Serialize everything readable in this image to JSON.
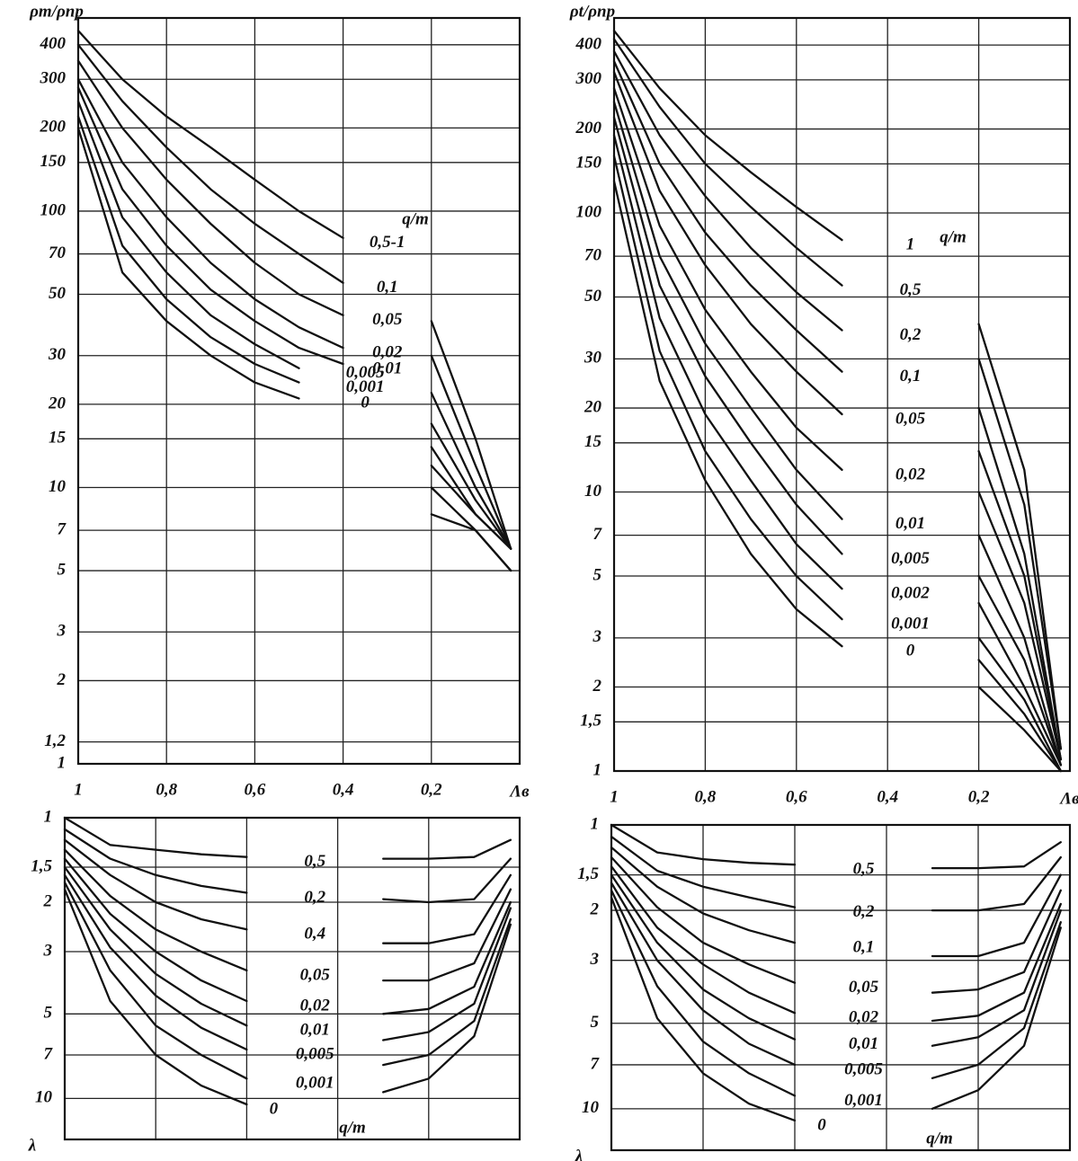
{
  "chart_data": [
    {
      "type": "line",
      "ylog": true,
      "grid": true,
      "y_label": "ρm/ρпр",
      "x_label": "Λв",
      "legend_title": "q/m",
      "xlim": [
        1,
        0
      ],
      "ylim": [
        1,
        500
      ],
      "xticks": [
        1,
        {
          "value": 0.8,
          "label": "0,8"
        },
        {
          "value": 0.6,
          "label": "0,6"
        },
        {
          "value": 0.4,
          "label": "0,4"
        },
        {
          "value": 0.2,
          "label": "0,2"
        }
      ],
      "yticks": [
        1,
        {
          "value": 1.2,
          "label": "1,2"
        },
        2,
        3,
        5,
        7,
        10,
        15,
        20,
        30,
        50,
        70,
        100,
        150,
        200,
        300,
        400
      ],
      "x": [
        1,
        0.9,
        0.8,
        0.7,
        0.6,
        0.5,
        0.4,
        0.3,
        0.2,
        0.1,
        0.02
      ],
      "series": [
        {
          "name": "0,5-1",
          "color": "#111111",
          "values": [
            450,
            300,
            220,
            170,
            130,
            100,
            80,
            null,
            40,
            15,
            6
          ]
        },
        {
          "name": "0,1",
          "color": "#111111",
          "values": [
            400,
            250,
            170,
            120,
            90,
            70,
            55,
            null,
            30,
            12,
            6
          ]
        },
        {
          "name": "0,05",
          "color": "#111111",
          "values": [
            350,
            200,
            130,
            90,
            65,
            50,
            42,
            null,
            22,
            10,
            6
          ]
        },
        {
          "name": "0,02",
          "color": "#111111",
          "values": [
            300,
            150,
            95,
            65,
            48,
            38,
            32,
            null,
            17,
            9,
            6
          ]
        },
        {
          "name": "0,01",
          "color": "#111111",
          "values": [
            280,
            120,
            75,
            52,
            40,
            32,
            28,
            null,
            14,
            8,
            6
          ]
        },
        {
          "name": "0,005",
          "color": "#111111",
          "values": [
            250,
            95,
            60,
            42,
            33,
            27,
            null,
            null,
            12,
            8,
            6
          ]
        },
        {
          "name": "0,001",
          "color": "#111111",
          "values": [
            220,
            75,
            48,
            35,
            28,
            24,
            null,
            null,
            10,
            7,
            5
          ]
        },
        {
          "name": "0",
          "color": "#111111",
          "values": [
            200,
            60,
            40,
            30,
            24,
            21,
            null,
            null,
            8,
            7,
            5
          ]
        }
      ]
    },
    {
      "type": "line",
      "ylog": true,
      "grid": true,
      "y_label": "ρt/ρпр",
      "x_label": "Λв",
      "legend_title": "q/m",
      "xlim": [
        1,
        0
      ],
      "ylim": [
        1,
        500
      ],
      "xticks": [
        1,
        {
          "value": 0.8,
          "label": "0,8"
        },
        {
          "value": 0.6,
          "label": "0,6"
        },
        {
          "value": 0.4,
          "label": "0,4"
        },
        {
          "value": 0.2,
          "label": "0,2"
        }
      ],
      "yticks": [
        1,
        {
          "value": 1.5,
          "label": "1,5"
        },
        2,
        3,
        5,
        7,
        10,
        15,
        20,
        30,
        50,
        70,
        100,
        150,
        200,
        300,
        400
      ],
      "x": [
        1,
        0.9,
        0.8,
        0.7,
        0.6,
        0.5,
        0.4,
        0.3,
        0.2,
        0.1,
        0.02
      ],
      "series": [
        {
          "name": "1",
          "color": "#111111",
          "values": [
            450,
            280,
            190,
            140,
            105,
            80,
            null,
            null,
            40,
            12,
            1.2
          ]
        },
        {
          "name": "0,5",
          "color": "#111111",
          "values": [
            420,
            240,
            150,
            105,
            75,
            55,
            null,
            null,
            30,
            9,
            1.2
          ]
        },
        {
          "name": "0,2",
          "color": "#111111",
          "values": [
            380,
            190,
            115,
            75,
            52,
            38,
            null,
            null,
            20,
            6,
            1.1
          ]
        },
        {
          "name": "0,1",
          "color": "#111111",
          "values": [
            350,
            150,
            85,
            55,
            38,
            27,
            null,
            null,
            14,
            5,
            1.1
          ]
        },
        {
          "name": "0,05",
          "color": "#111111",
          "values": [
            320,
            120,
            65,
            40,
            27,
            19,
            null,
            null,
            10,
            4,
            1.1
          ]
        },
        {
          "name": "0,02",
          "color": "#111111",
          "values": [
            280,
            90,
            45,
            27,
            17,
            12,
            null,
            null,
            7,
            3,
            1.05
          ]
        },
        {
          "name": "0,01",
          "color": "#111111",
          "values": [
            250,
            70,
            34,
            20,
            12,
            8,
            null,
            null,
            5,
            2.5,
            1.05
          ]
        },
        {
          "name": "0,005",
          "color": "#111111",
          "values": [
            220,
            55,
            26,
            15,
            9,
            6,
            null,
            null,
            4,
            2,
            1.05
          ]
        },
        {
          "name": "0,002",
          "color": "#111111",
          "values": [
            190,
            42,
            19,
            11,
            6.5,
            4.5,
            null,
            null,
            3,
            1.8,
            1
          ]
        },
        {
          "name": "0,001",
          "color": "#111111",
          "values": [
            160,
            32,
            14,
            8,
            5,
            3.5,
            null,
            null,
            2.5,
            1.6,
            1
          ]
        },
        {
          "name": "0",
          "color": "#111111",
          "values": [
            130,
            25,
            11,
            6,
            3.8,
            2.8,
            null,
            null,
            2,
            1.4,
            1
          ]
        }
      ]
    },
    {
      "type": "line",
      "ylog": true,
      "yinverted": true,
      "grid": true,
      "y_label": "λ",
      "legend_title": "q/m",
      "xlim": [
        1,
        0
      ],
      "ylim": [
        1,
        14
      ],
      "yticks": [
        1,
        {
          "value": 1.5,
          "label": "1,5"
        },
        2,
        3,
        5,
        7,
        10
      ],
      "x": [
        1,
        0.9,
        0.8,
        0.7,
        0.6,
        0.5,
        0.4,
        0.3,
        0.2,
        0.1,
        0.02
      ],
      "series": [
        {
          "name": "0,5",
          "color": "#111111",
          "values": [
            1,
            1.25,
            1.3,
            1.35,
            1.38,
            null,
            null,
            1.4,
            1.4,
            1.38,
            1.2
          ]
        },
        {
          "name": "0,2",
          "color": "#111111",
          "values": [
            1.1,
            1.4,
            1.6,
            1.75,
            1.85,
            null,
            null,
            1.95,
            2,
            1.95,
            1.4
          ]
        },
        {
          "name": "0,4",
          "color": "#111111",
          "values": [
            1.2,
            1.6,
            2,
            2.3,
            2.5,
            null,
            null,
            2.8,
            2.8,
            2.6,
            1.6
          ]
        },
        {
          "name": "0,05",
          "color": "#111111",
          "values": [
            1.3,
            1.9,
            2.5,
            3,
            3.5,
            null,
            null,
            3.8,
            3.8,
            3.3,
            1.8
          ]
        },
        {
          "name": "0,02",
          "color": "#111111",
          "values": [
            1.4,
            2.2,
            3,
            3.8,
            4.5,
            null,
            null,
            5,
            4.8,
            4,
            2
          ]
        },
        {
          "name": "0,01",
          "color": "#111111",
          "values": [
            1.5,
            2.5,
            3.6,
            4.6,
            5.5,
            null,
            null,
            6.2,
            5.8,
            4.6,
            2.1
          ]
        },
        {
          "name": "0,005",
          "color": "#111111",
          "values": [
            1.6,
            2.9,
            4.3,
            5.6,
            6.7,
            null,
            null,
            7.6,
            7,
            5.3,
            2.3
          ]
        },
        {
          "name": "0,001",
          "color": "#111111",
          "values": [
            1.7,
            3.5,
            5.5,
            7,
            8.5,
            null,
            null,
            9.5,
            8.5,
            6,
            2.4
          ]
        },
        {
          "name": "0",
          "color": "#111111",
          "values": [
            1.8,
            4.5,
            7,
            9,
            10.5,
            null,
            null,
            null,
            null,
            null,
            null
          ]
        }
      ]
    },
    {
      "type": "line",
      "ylog": true,
      "yinverted": true,
      "grid": true,
      "y_label": "λ",
      "legend_title": "q/m",
      "xlim": [
        1,
        0
      ],
      "ylim": [
        1,
        14
      ],
      "yticks": [
        1,
        {
          "value": 1.5,
          "label": "1,5"
        },
        2,
        3,
        5,
        7,
        10
      ],
      "x": [
        1,
        0.9,
        0.8,
        0.7,
        0.6,
        0.5,
        0.4,
        0.3,
        0.2,
        0.1,
        0.02
      ],
      "series": [
        {
          "name": "0,5",
          "color": "#111111",
          "values": [
            1,
            1.25,
            1.32,
            1.36,
            1.38,
            null,
            null,
            1.42,
            1.42,
            1.4,
            1.15
          ]
        },
        {
          "name": "0,2",
          "color": "#111111",
          "values": [
            1.1,
            1.45,
            1.65,
            1.8,
            1.95,
            null,
            null,
            2,
            2,
            1.9,
            1.3
          ]
        },
        {
          "name": "0,1",
          "color": "#111111",
          "values": [
            1.2,
            1.65,
            2.05,
            2.35,
            2.6,
            null,
            null,
            2.9,
            2.9,
            2.6,
            1.5
          ]
        },
        {
          "name": "0,05",
          "color": "#111111",
          "values": [
            1.3,
            1.95,
            2.6,
            3.1,
            3.6,
            null,
            null,
            3.9,
            3.8,
            3.3,
            1.7
          ]
        },
        {
          "name": "0,02",
          "color": "#111111",
          "values": [
            1.4,
            2.3,
            3.1,
            3.9,
            4.6,
            null,
            null,
            4.9,
            4.7,
            3.9,
            1.9
          ]
        },
        {
          "name": "0,01",
          "color": "#111111",
          "values": [
            1.5,
            2.6,
            3.8,
            4.8,
            5.7,
            null,
            null,
            6,
            5.6,
            4.5,
            2
          ]
        },
        {
          "name": "0,005",
          "color": "#111111",
          "values": [
            1.6,
            3,
            4.5,
            5.9,
            7,
            null,
            null,
            7.8,
            7,
            5.2,
            2.2
          ]
        },
        {
          "name": "0,001",
          "color": "#111111",
          "values": [
            1.7,
            3.7,
            5.8,
            7.5,
            9,
            null,
            null,
            10,
            8.6,
            6,
            2.3
          ]
        },
        {
          "name": "0",
          "color": "#111111",
          "values": [
            1.8,
            4.8,
            7.5,
            9.6,
            11,
            null,
            null,
            null,
            null,
            null,
            null
          ]
        }
      ]
    }
  ]
}
